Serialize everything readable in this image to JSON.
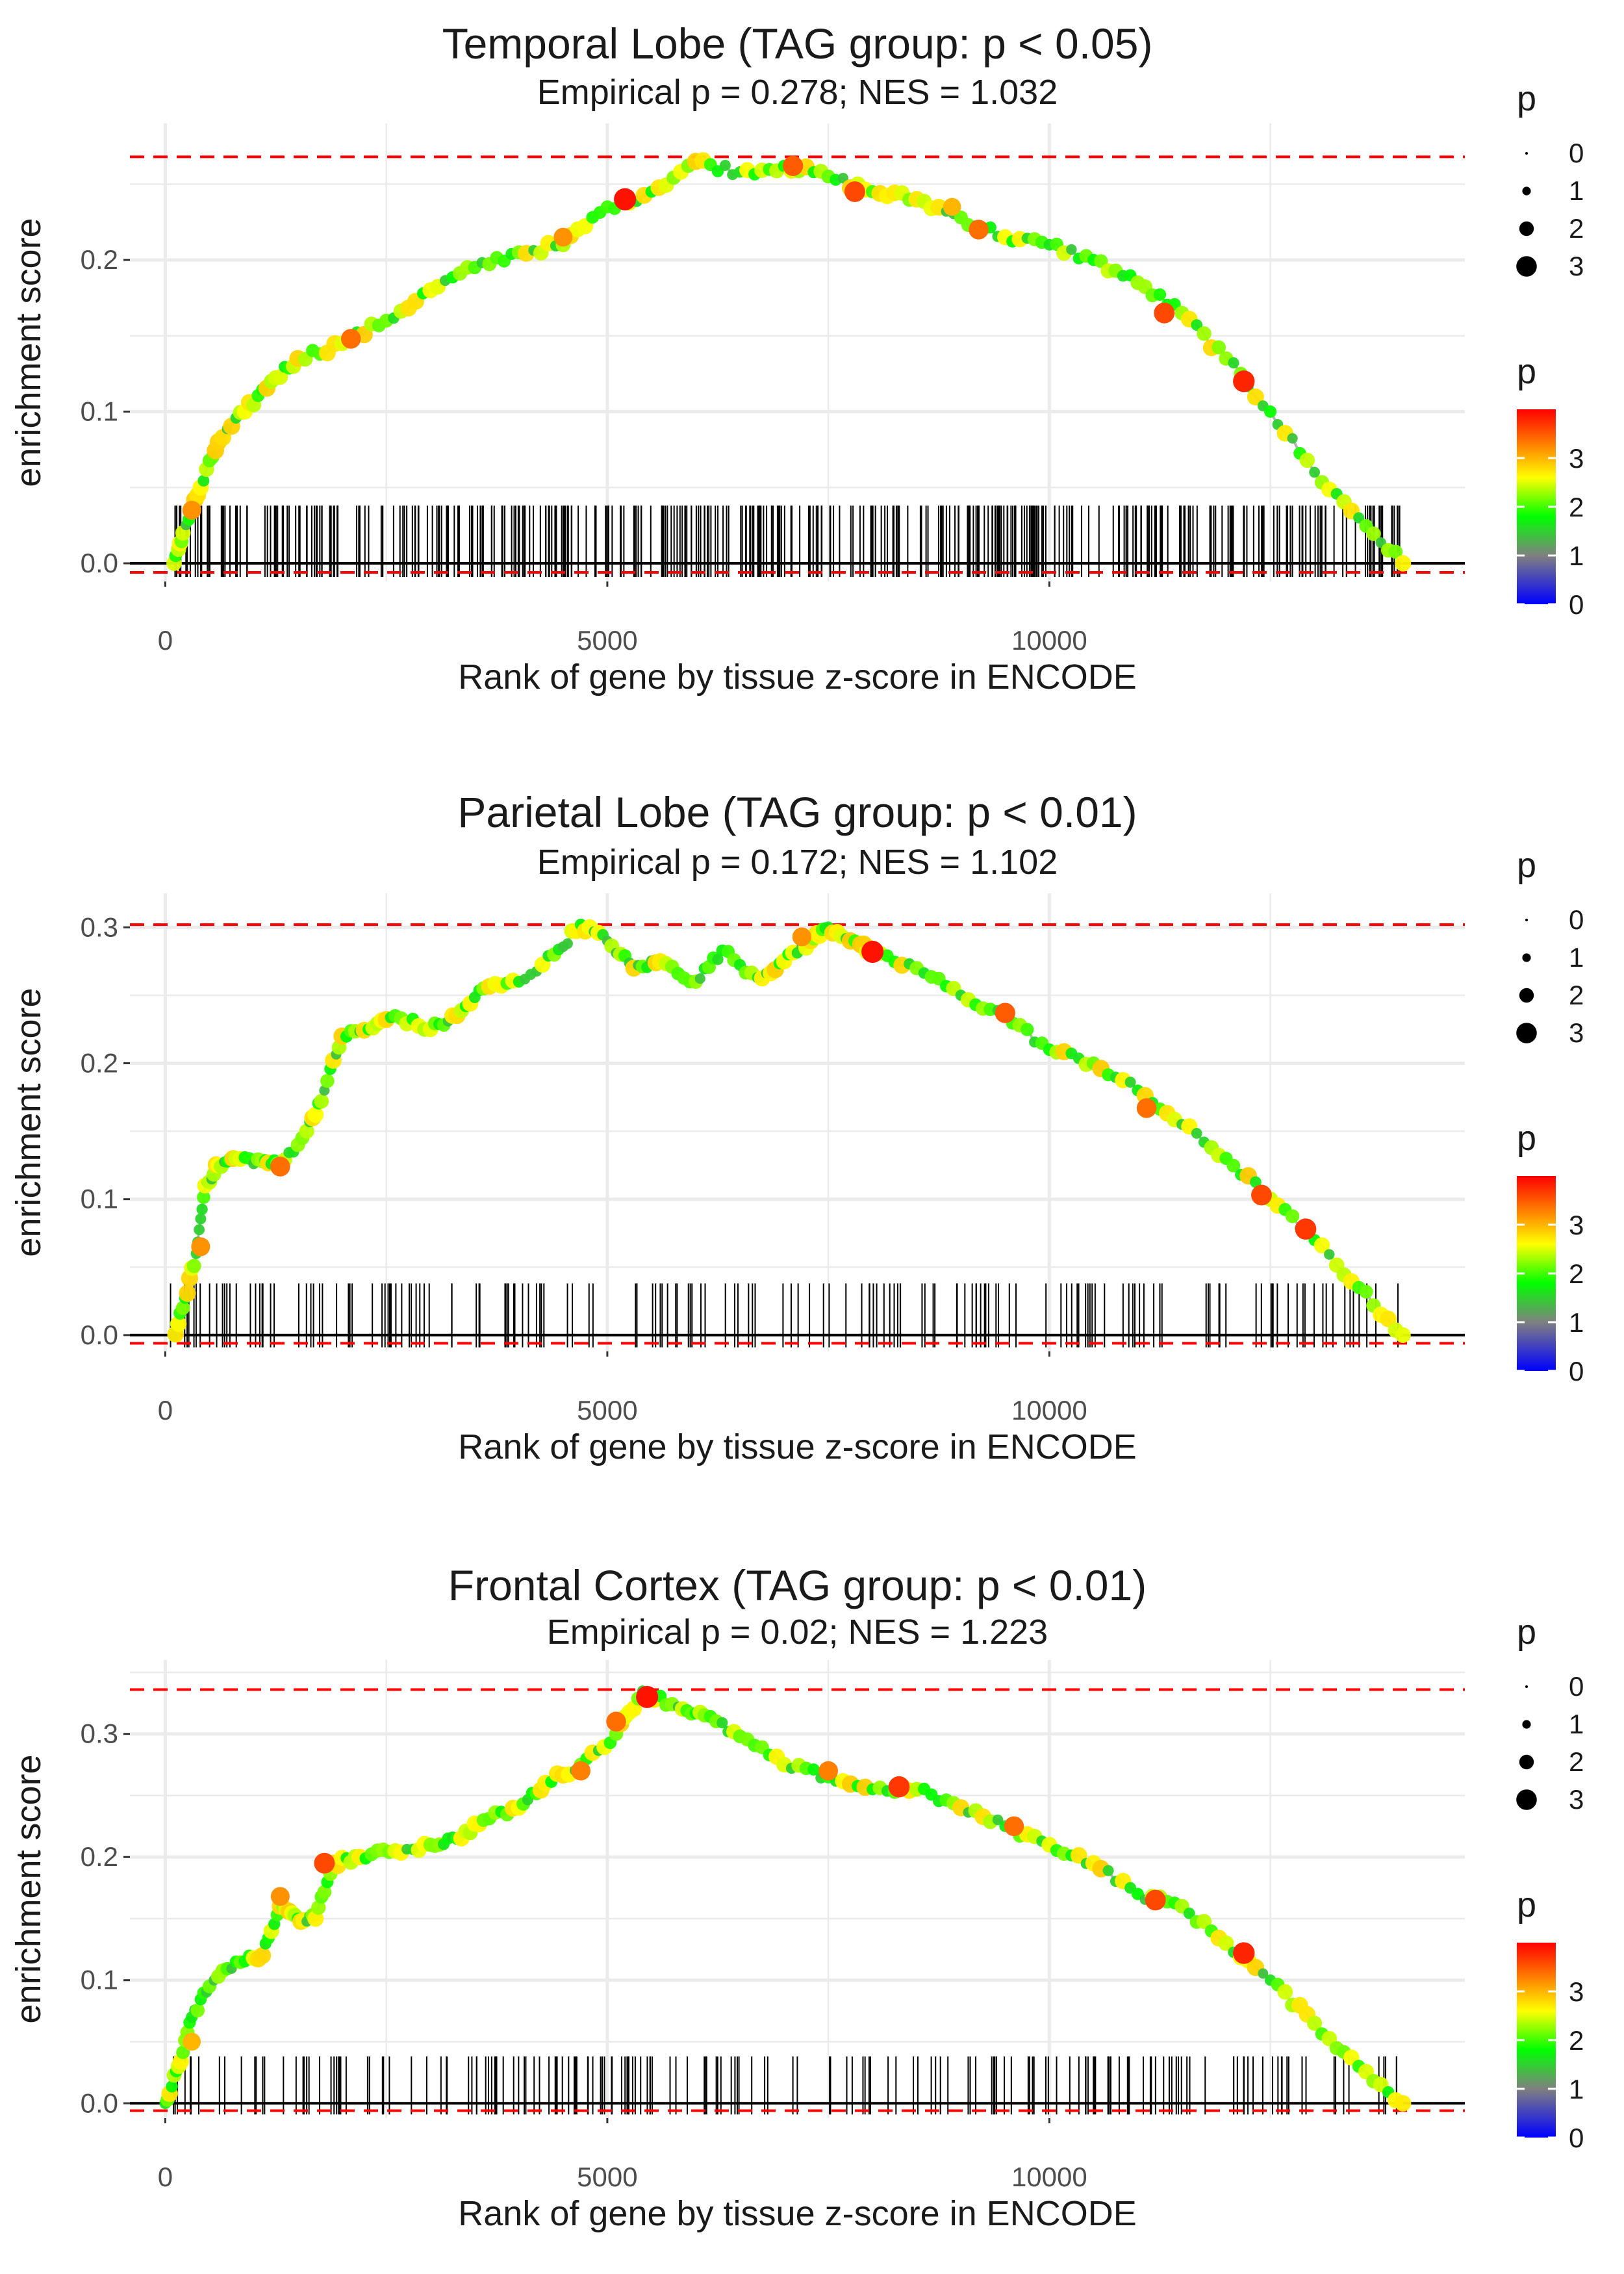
{
  "figure": {
    "background": "#ffffff"
  },
  "colors": {
    "grid": "#ebebeb",
    "curve": "#b3b3b3",
    "baseline": "#000000",
    "max_line": "#ff0000",
    "rug": "#000000",
    "text": "#1a1a1a",
    "tick_text": "#4d4d4d",
    "gradient": [
      "#0000ff",
      "#808080",
      "#00ff00",
      "#ffff00",
      "#ff8000",
      "#ff0000"
    ]
  },
  "legend": {
    "size_title": "p",
    "size_labels": [
      "0",
      "1",
      "2",
      "3"
    ],
    "color_title": "p",
    "color_labels": [
      "3",
      "2",
      "1",
      "0"
    ]
  },
  "chart_data": [
    {
      "type": "line",
      "title": "Temporal Lobe (TAG group: p < 0.05)",
      "subtitle": "Empirical p = 0.278; NES = 1.032",
      "xlabel": "Rank of gene by tissue z-score in ENCODE",
      "ylabel": "enrichment score",
      "xlim": [
        -400,
        14700
      ],
      "ylim": [
        -0.012,
        0.29
      ],
      "xticks": [
        0,
        5000,
        10000
      ],
      "xtick_labels": [
        "0",
        "5000",
        "10000"
      ],
      "yticks": [
        0,
        0.1,
        0.2
      ],
      "ytick_labels": [
        "0.0",
        "0.1",
        "0.2"
      ],
      "max_es": 0.268,
      "min_es": -0.006,
      "curve": [
        [
          100,
          0.0
        ],
        [
          200,
          0.02
        ],
        [
          400,
          0.05
        ],
        [
          600,
          0.08
        ],
        [
          900,
          0.1
        ],
        [
          1200,
          0.12
        ],
        [
          1500,
          0.135
        ],
        [
          2000,
          0.145
        ],
        [
          2500,
          0.16
        ],
        [
          3000,
          0.18
        ],
        [
          3500,
          0.195
        ],
        [
          4000,
          0.205
        ],
        [
          4500,
          0.21
        ],
        [
          5000,
          0.235
        ],
        [
          5500,
          0.245
        ],
        [
          6000,
          0.265
        ],
        [
          6500,
          0.258
        ],
        [
          7000,
          0.262
        ],
        [
          7500,
          0.255
        ],
        [
          8000,
          0.245
        ],
        [
          8500,
          0.24
        ],
        [
          9000,
          0.228
        ],
        [
          9500,
          0.215
        ],
        [
          10000,
          0.21
        ],
        [
          10500,
          0.2
        ],
        [
          11000,
          0.185
        ],
        [
          11500,
          0.165
        ],
        [
          12000,
          0.135
        ],
        [
          12500,
          0.1
        ],
        [
          13000,
          0.06
        ],
        [
          13500,
          0.03
        ],
        [
          14000,
          0.0
        ]
      ],
      "highlight_points": [
        {
          "x": 5200,
          "y": 0.24,
          "p": 3.9
        },
        {
          "x": 7100,
          "y": 0.262,
          "p": 3.5
        },
        {
          "x": 7800,
          "y": 0.245,
          "p": 3.6
        },
        {
          "x": 9200,
          "y": 0.22,
          "p": 3.4
        },
        {
          "x": 11300,
          "y": 0.165,
          "p": 3.6
        },
        {
          "x": 12200,
          "y": 0.12,
          "p": 3.8
        },
        {
          "x": 300,
          "y": 0.035,
          "p": 3.2
        },
        {
          "x": 2100,
          "y": 0.148,
          "p": 3.4
        },
        {
          "x": 4500,
          "y": 0.215,
          "p": 3.2
        },
        {
          "x": 8900,
          "y": 0.235,
          "p": 3.0
        }
      ],
      "rug_count": 420
    },
    {
      "type": "line",
      "title": "Parietal Lobe (TAG group: p < 0.01)",
      "subtitle": "Empirical p = 0.172; NES = 1.102",
      "xlabel": "Rank of gene by tissue z-score in ENCODE",
      "ylabel": "enrichment score",
      "xlim": [
        -400,
        14700
      ],
      "ylim": [
        -0.012,
        0.325
      ],
      "xticks": [
        0,
        5000,
        10000
      ],
      "xtick_labels": [
        "0",
        "5000",
        "10000"
      ],
      "yticks": [
        0,
        0.1,
        0.2,
        0.3
      ],
      "ytick_labels": [
        "0.0",
        "0.1",
        "0.2",
        "0.3"
      ],
      "max_es": 0.302,
      "min_es": -0.006,
      "curve": [
        [
          100,
          0.0
        ],
        [
          200,
          0.02
        ],
        [
          350,
          0.06
        ],
        [
          450,
          0.11
        ],
        [
          600,
          0.125
        ],
        [
          800,
          0.13
        ],
        [
          1100,
          0.128
        ],
        [
          1300,
          0.125
        ],
        [
          1600,
          0.15
        ],
        [
          1800,
          0.18
        ],
        [
          2000,
          0.22
        ],
        [
          2300,
          0.225
        ],
        [
          2600,
          0.235
        ],
        [
          3000,
          0.225
        ],
        [
          3300,
          0.235
        ],
        [
          3600,
          0.255
        ],
        [
          4000,
          0.26
        ],
        [
          4400,
          0.28
        ],
        [
          4700,
          0.302
        ],
        [
          5000,
          0.29
        ],
        [
          5300,
          0.27
        ],
        [
          5600,
          0.275
        ],
        [
          6000,
          0.26
        ],
        [
          6300,
          0.283
        ],
        [
          6700,
          0.263
        ],
        [
          7000,
          0.275
        ],
        [
          7300,
          0.29
        ],
        [
          7500,
          0.3
        ],
        [
          7800,
          0.29
        ],
        [
          8000,
          0.28
        ],
        [
          8500,
          0.27
        ],
        [
          9000,
          0.25
        ],
        [
          9500,
          0.235
        ],
        [
          10000,
          0.21
        ],
        [
          10500,
          0.2
        ],
        [
          11000,
          0.18
        ],
        [
          11500,
          0.155
        ],
        [
          12000,
          0.13
        ],
        [
          12500,
          0.1
        ],
        [
          13000,
          0.07
        ],
        [
          13500,
          0.035
        ],
        [
          14000,
          0.0
        ]
      ],
      "highlight_points": [
        {
          "x": 8000,
          "y": 0.282,
          "p": 3.9
        },
        {
          "x": 9500,
          "y": 0.237,
          "p": 3.5
        },
        {
          "x": 12400,
          "y": 0.103,
          "p": 3.6
        },
        {
          "x": 12900,
          "y": 0.078,
          "p": 3.7
        },
        {
          "x": 1300,
          "y": 0.124,
          "p": 3.4
        },
        {
          "x": 11100,
          "y": 0.167,
          "p": 3.4
        },
        {
          "x": 7200,
          "y": 0.293,
          "p": 3.2
        },
        {
          "x": 400,
          "y": 0.065,
          "p": 3.2
        }
      ],
      "rug_count": 170
    },
    {
      "type": "line",
      "title": "Frontal Cortex (TAG group: p < 0.01)",
      "subtitle": "Empirical p = 0.02; NES = 1.223",
      "xlabel": "Rank of gene by tissue z-score in ENCODE",
      "ylabel": "enrichment score",
      "xlim": [
        -400,
        14700
      ],
      "ylim": [
        -0.012,
        0.36
      ],
      "xticks": [
        0,
        5000,
        10000
      ],
      "xtick_labels": [
        "0",
        "5000",
        "10000"
      ],
      "yticks": [
        0,
        0.1,
        0.2,
        0.3
      ],
      "ytick_labels": [
        "0.0",
        "0.1",
        "0.2",
        "0.3"
      ],
      "max_es": 0.336,
      "min_es": -0.006,
      "curve": [
        [
          0,
          0.0
        ],
        [
          150,
          0.03
        ],
        [
          300,
          0.07
        ],
        [
          500,
          0.095
        ],
        [
          800,
          0.115
        ],
        [
          1100,
          0.12
        ],
        [
          1300,
          0.16
        ],
        [
          1500,
          0.15
        ],
        [
          1700,
          0.15
        ],
        [
          1900,
          0.195
        ],
        [
          2200,
          0.2
        ],
        [
          2600,
          0.205
        ],
        [
          3000,
          0.21
        ],
        [
          3300,
          0.215
        ],
        [
          3600,
          0.23
        ],
        [
          4000,
          0.24
        ],
        [
          4300,
          0.26
        ],
        [
          4700,
          0.275
        ],
        [
          5100,
          0.3
        ],
        [
          5400,
          0.335
        ],
        [
          5800,
          0.322
        ],
        [
          6100,
          0.315
        ],
        [
          6500,
          0.298
        ],
        [
          7000,
          0.275
        ],
        [
          7500,
          0.265
        ],
        [
          8000,
          0.255
        ],
        [
          8500,
          0.255
        ],
        [
          9000,
          0.24
        ],
        [
          9500,
          0.225
        ],
        [
          10000,
          0.21
        ],
        [
          10500,
          0.195
        ],
        [
          11000,
          0.17
        ],
        [
          11500,
          0.16
        ],
        [
          12000,
          0.13
        ],
        [
          12500,
          0.1
        ],
        [
          13000,
          0.065
        ],
        [
          13500,
          0.03
        ],
        [
          14000,
          0.0
        ]
      ],
      "highlight_points": [
        {
          "x": 5450,
          "y": 0.33,
          "p": 3.9
        },
        {
          "x": 12200,
          "y": 0.122,
          "p": 3.8
        },
        {
          "x": 8300,
          "y": 0.257,
          "p": 3.7
        },
        {
          "x": 11200,
          "y": 0.165,
          "p": 3.6
        },
        {
          "x": 1800,
          "y": 0.195,
          "p": 3.6
        },
        {
          "x": 5100,
          "y": 0.31,
          "p": 3.4
        },
        {
          "x": 4700,
          "y": 0.27,
          "p": 3.3
        },
        {
          "x": 9600,
          "y": 0.225,
          "p": 3.4
        },
        {
          "x": 7500,
          "y": 0.27,
          "p": 3.3
        },
        {
          "x": 1300,
          "y": 0.168,
          "p": 3.2
        },
        {
          "x": 300,
          "y": 0.05,
          "p": 3.0
        }
      ],
      "rug_count": 190
    }
  ]
}
